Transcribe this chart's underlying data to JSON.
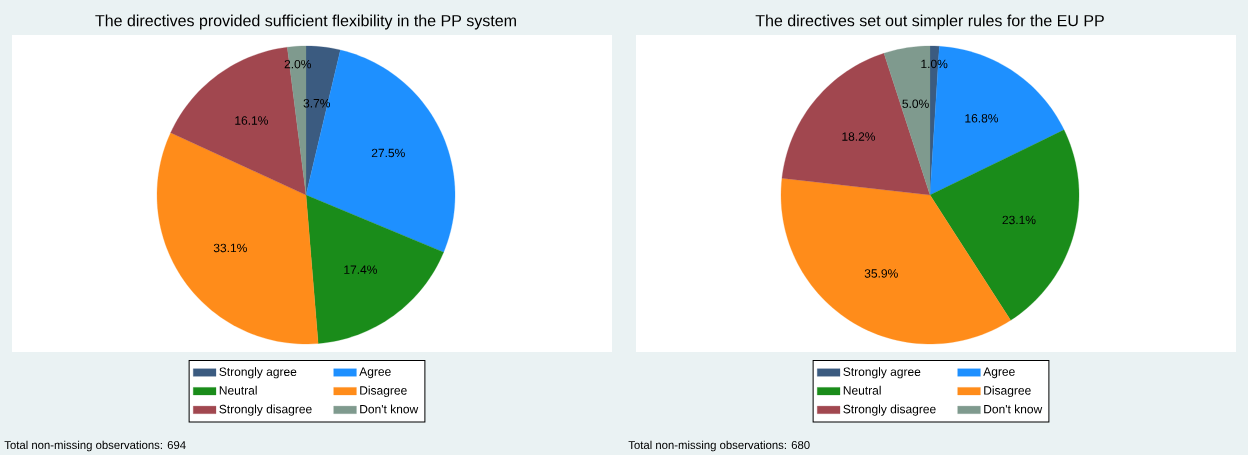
{
  "chart_data": [
    {
      "type": "pie",
      "title": "The directives provided sufficient flexibility in the PP system",
      "categories": [
        "Strongly agree",
        "Agree",
        "Neutral",
        "Disagree",
        "Strongly disagree",
        "Don't know"
      ],
      "values": [
        3.7,
        27.5,
        17.4,
        33.1,
        16.1,
        2.0
      ],
      "value_labels": [
        "3.7%",
        "27.5%",
        "17.4%",
        "33.1%",
        "16.1%",
        "2.0%"
      ],
      "colors": [
        "#3b5b80",
        "#1e90ff",
        "#1a8c1a",
        "#ff8c1a",
        "#a1474f",
        "#7f9a8e"
      ],
      "legend": "bottom",
      "annotations": [
        "Total non-missing observations: 694"
      ]
    },
    {
      "type": "pie",
      "title": "The directives set out simpler rules for the EU PP",
      "categories": [
        "Strongly agree",
        "Agree",
        "Neutral",
        "Disagree",
        "Strongly disagree",
        "Don't know"
      ],
      "values": [
        1.0,
        16.8,
        23.1,
        35.9,
        18.2,
        5.0
      ],
      "value_labels": [
        "1.0%",
        "16.8%",
        "23.1%",
        "35.9%",
        "18.2%",
        "5.0%"
      ],
      "colors": [
        "#3b5b80",
        "#1e90ff",
        "#1a8c1a",
        "#ff8c1a",
        "#a1474f",
        "#7f9a8e"
      ],
      "legend": "bottom",
      "annotations": [
        "Total non-missing observations: 680"
      ]
    }
  ]
}
